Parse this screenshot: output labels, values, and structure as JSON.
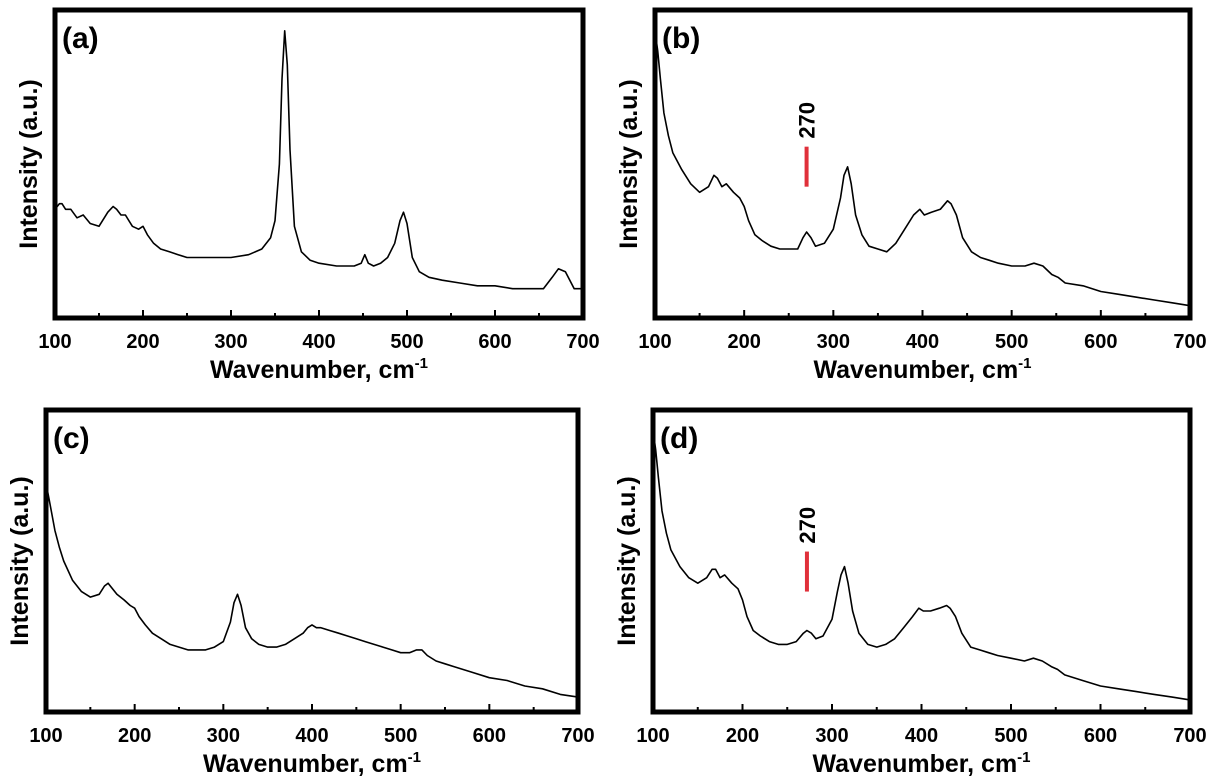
{
  "chart_data": [
    {
      "type": "line",
      "panel_label": "(a)",
      "xlabel": "Wavenumber, cm",
      "xlabel_superscript": "-1",
      "ylabel": "Intensity (a.u.)",
      "xlim": [
        100,
        700
      ],
      "ylim": [
        0,
        1
      ],
      "y_ticks_shown": false,
      "grid": false,
      "x_ticks": [
        100,
        200,
        300,
        400,
        500,
        600,
        700
      ],
      "x_tick_labels": [
        "100",
        "200",
        "300",
        "400",
        "500",
        "600",
        "700"
      ],
      "line_color": "#000000",
      "annotations": [],
      "series": [
        {
          "x": [
            100,
            105,
            108,
            112,
            118,
            125,
            132,
            140,
            150,
            160,
            166,
            170,
            175,
            180,
            188,
            195,
            200,
            205,
            212,
            220,
            230,
            240,
            250,
            260,
            280,
            300,
            320,
            335,
            345,
            350,
            355,
            358,
            361,
            364,
            367,
            372,
            380,
            390,
            400,
            420,
            440,
            448,
            452,
            456,
            462,
            470,
            478,
            486,
            492,
            496,
            500,
            506,
            514,
            525,
            540,
            560,
            580,
            600,
            620,
            640,
            655,
            665,
            672,
            680,
            690,
            700
          ],
          "y": [
            0.34,
            0.36,
            0.36,
            0.34,
            0.34,
            0.31,
            0.32,
            0.29,
            0.28,
            0.33,
            0.35,
            0.34,
            0.32,
            0.32,
            0.28,
            0.27,
            0.28,
            0.25,
            0.22,
            0.2,
            0.19,
            0.18,
            0.17,
            0.17,
            0.17,
            0.17,
            0.18,
            0.2,
            0.24,
            0.3,
            0.5,
            0.8,
            0.97,
            0.85,
            0.55,
            0.28,
            0.19,
            0.16,
            0.15,
            0.14,
            0.14,
            0.15,
            0.18,
            0.15,
            0.14,
            0.15,
            0.17,
            0.22,
            0.3,
            0.33,
            0.29,
            0.17,
            0.12,
            0.1,
            0.09,
            0.08,
            0.07,
            0.07,
            0.06,
            0.06,
            0.06,
            0.1,
            0.13,
            0.12,
            0.06,
            0.06
          ]
        }
      ]
    },
    {
      "type": "line",
      "panel_label": "(b)",
      "xlabel": "Wavenumber, cm",
      "xlabel_superscript": "-1",
      "ylabel": "Intensity (a.u.)",
      "xlim": [
        100,
        700
      ],
      "ylim": [
        0,
        1
      ],
      "y_ticks_shown": false,
      "grid": false,
      "x_ticks": [
        100,
        200,
        300,
        400,
        500,
        600,
        700
      ],
      "x_tick_labels": [
        "100",
        "200",
        "300",
        "400",
        "500",
        "600",
        "700"
      ],
      "line_color": "#000000",
      "annotations": [
        {
          "x": 270,
          "y": 0.42,
          "label": "270",
          "color": "#e0303a"
        }
      ],
      "series": [
        {
          "x": [
            100,
            103,
            106,
            110,
            115,
            120,
            130,
            140,
            150,
            160,
            166,
            170,
            175,
            180,
            188,
            195,
            200,
            205,
            212,
            220,
            230,
            240,
            250,
            260,
            266,
            270,
            275,
            280,
            290,
            300,
            308,
            312,
            316,
            320,
            325,
            332,
            340,
            350,
            360,
            370,
            380,
            390,
            397,
            402,
            410,
            420,
            428,
            432,
            438,
            445,
            455,
            465,
            475,
            485,
            500,
            515,
            525,
            535,
            545,
            552,
            560,
            580,
            600,
            620,
            640,
            660,
            680,
            700
          ],
          "y": [
            0.97,
            0.9,
            0.8,
            0.68,
            0.6,
            0.54,
            0.48,
            0.43,
            0.4,
            0.42,
            0.46,
            0.45,
            0.42,
            0.43,
            0.4,
            0.38,
            0.35,
            0.3,
            0.25,
            0.23,
            0.21,
            0.2,
            0.2,
            0.2,
            0.24,
            0.26,
            0.24,
            0.21,
            0.22,
            0.27,
            0.38,
            0.46,
            0.49,
            0.43,
            0.32,
            0.25,
            0.21,
            0.2,
            0.19,
            0.22,
            0.27,
            0.32,
            0.34,
            0.32,
            0.33,
            0.34,
            0.37,
            0.36,
            0.32,
            0.24,
            0.19,
            0.17,
            0.16,
            0.15,
            0.14,
            0.14,
            0.15,
            0.14,
            0.11,
            0.1,
            0.08,
            0.07,
            0.05,
            0.04,
            0.03,
            0.02,
            0.01,
            0.0
          ]
        }
      ]
    },
    {
      "type": "line",
      "panel_label": "(c)",
      "xlabel": "Wavenumber, cm",
      "xlabel_superscript": "-1",
      "ylabel": "Intensity (a.u.)",
      "xlim": [
        100,
        700
      ],
      "ylim": [
        0,
        1
      ],
      "y_ticks_shown": false,
      "grid": false,
      "x_ticks": [
        100,
        200,
        300,
        400,
        500,
        600,
        700
      ],
      "x_tick_labels": [
        "100",
        "200",
        "300",
        "400",
        "500",
        "600",
        "700"
      ],
      "line_color": "#000000",
      "annotations": [],
      "series": [
        {
          "x": [
            100,
            103,
            106,
            110,
            115,
            120,
            130,
            140,
            150,
            160,
            166,
            170,
            175,
            180,
            188,
            195,
            200,
            205,
            212,
            220,
            230,
            240,
            250,
            260,
            270,
            280,
            290,
            300,
            308,
            312,
            316,
            320,
            325,
            332,
            340,
            350,
            360,
            370,
            380,
            390,
            395,
            400,
            405,
            410,
            420,
            430,
            440,
            450,
            460,
            470,
            480,
            490,
            500,
            510,
            518,
            524,
            530,
            540,
            550,
            560,
            580,
            600,
            620,
            640,
            660,
            680,
            700
          ],
          "y": [
            0.78,
            0.73,
            0.68,
            0.61,
            0.55,
            0.5,
            0.43,
            0.39,
            0.37,
            0.38,
            0.41,
            0.42,
            0.4,
            0.38,
            0.36,
            0.34,
            0.33,
            0.3,
            0.27,
            0.24,
            0.22,
            0.2,
            0.19,
            0.18,
            0.18,
            0.18,
            0.19,
            0.21,
            0.28,
            0.35,
            0.38,
            0.34,
            0.26,
            0.22,
            0.2,
            0.19,
            0.19,
            0.2,
            0.22,
            0.24,
            0.26,
            0.27,
            0.26,
            0.26,
            0.25,
            0.24,
            0.23,
            0.22,
            0.21,
            0.2,
            0.19,
            0.18,
            0.17,
            0.17,
            0.18,
            0.18,
            0.16,
            0.14,
            0.13,
            0.12,
            0.1,
            0.08,
            0.07,
            0.05,
            0.04,
            0.02,
            0.01
          ]
        }
      ]
    },
    {
      "type": "line",
      "panel_label": "(d)",
      "xlabel": "Wavenumber, cm",
      "xlabel_superscript": "-1",
      "ylabel": "Intensity (a.u.)",
      "xlim": [
        100,
        700
      ],
      "ylim": [
        0,
        1
      ],
      "y_ticks_shown": false,
      "grid": false,
      "x_ticks": [
        100,
        200,
        300,
        400,
        500,
        600,
        700
      ],
      "x_tick_labels": [
        "100",
        "200",
        "300",
        "400",
        "500",
        "600",
        "700"
      ],
      "line_color": "#000000",
      "annotations": [
        {
          "x": 272,
          "y": 0.39,
          "label": "270",
          "color": "#e0303a"
        }
      ],
      "series": [
        {
          "x": [
            100,
            103,
            106,
            110,
            115,
            120,
            130,
            140,
            150,
            160,
            166,
            170,
            175,
            180,
            188,
            195,
            200,
            205,
            212,
            220,
            230,
            240,
            250,
            260,
            268,
            272,
            277,
            282,
            290,
            300,
            306,
            310,
            314,
            318,
            323,
            330,
            340,
            350,
            360,
            370,
            380,
            390,
            397,
            402,
            410,
            420,
            428,
            432,
            438,
            445,
            455,
            465,
            475,
            485,
            500,
            515,
            525,
            535,
            545,
            552,
            560,
            580,
            600,
            620,
            640,
            660,
            680,
            700
          ],
          "y": [
            0.97,
            0.9,
            0.8,
            0.68,
            0.6,
            0.54,
            0.48,
            0.44,
            0.42,
            0.44,
            0.47,
            0.47,
            0.44,
            0.45,
            0.42,
            0.4,
            0.36,
            0.3,
            0.25,
            0.23,
            0.21,
            0.2,
            0.2,
            0.21,
            0.24,
            0.25,
            0.24,
            0.22,
            0.23,
            0.29,
            0.39,
            0.45,
            0.48,
            0.42,
            0.32,
            0.24,
            0.2,
            0.19,
            0.2,
            0.22,
            0.26,
            0.3,
            0.33,
            0.32,
            0.32,
            0.33,
            0.34,
            0.33,
            0.3,
            0.24,
            0.19,
            0.18,
            0.17,
            0.16,
            0.15,
            0.14,
            0.15,
            0.14,
            0.12,
            0.11,
            0.09,
            0.07,
            0.05,
            0.04,
            0.03,
            0.02,
            0.01,
            0.0
          ]
        }
      ]
    }
  ]
}
